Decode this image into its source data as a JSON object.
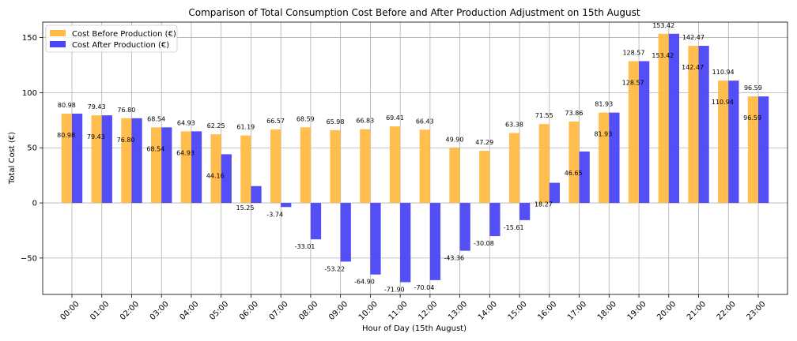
{
  "chart_data": {
    "type": "bar",
    "title": "Comparison of Total Consumption Cost Before and After Production Adjustment on 15th August",
    "xlabel": "Hour of Day (15th August)",
    "ylabel": "Total Cost (€)",
    "categories": [
      "00:00",
      "01:00",
      "02:00",
      "03:00",
      "04:00",
      "05:00",
      "06:00",
      "07:00",
      "08:00",
      "09:00",
      "10:00",
      "11:00",
      "12:00",
      "13:00",
      "14:00",
      "15:00",
      "16:00",
      "17:00",
      "18:00",
      "19:00",
      "20:00",
      "21:00",
      "22:00",
      "23:00"
    ],
    "series": [
      {
        "name": "Cost Before Production (€)",
        "color": "#FFBB44",
        "values": [
          80.98,
          79.43,
          76.8,
          68.54,
          64.93,
          62.25,
          61.19,
          66.57,
          68.59,
          65.98,
          66.83,
          69.41,
          66.43,
          49.9,
          47.29,
          63.38,
          71.55,
          73.86,
          81.93,
          128.57,
          153.42,
          142.47,
          110.94,
          96.59
        ],
        "labels": [
          "80.98",
          "79.43",
          "76.80",
          "68.54",
          "64.93",
          "62.25",
          "61.19",
          "66.57",
          "68.59",
          "65.98",
          "66.83",
          "69.41",
          "66.43",
          "49.90",
          "47.29",
          "63.38",
          "71.55",
          "73.86",
          "81.93",
          "128.57",
          "153.42",
          "142.47",
          "110.94",
          "96.59"
        ]
      },
      {
        "name": "Cost After Production (€)",
        "color": "#4B45F5",
        "values": [
          80.98,
          79.43,
          76.8,
          68.54,
          64.93,
          44.16,
          15.25,
          -3.74,
          -33.01,
          -53.22,
          -64.9,
          -71.9,
          -70.04,
          -43.36,
          -30.08,
          -15.61,
          18.27,
          46.65,
          81.93,
          128.57,
          153.42,
          142.47,
          110.94,
          96.59
        ],
        "labels": [
          "80.98",
          "79.43",
          "76.80",
          "68.54",
          "64.93",
          "44.16",
          "15.25",
          "-3.74",
          "-33.01",
          "-53.22",
          "-64.90",
          "-71.90",
          "-70.04",
          "-43.36",
          "-30.08",
          "-15.61",
          "18.27",
          "46.65",
          "81.93",
          "128.57",
          "153.42",
          "142.47",
          "110.94",
          "96.59"
        ]
      }
    ],
    "yticks": [
      -50,
      0,
      50,
      100,
      150
    ],
    "ytick_labels": [
      "−50",
      "0",
      "50",
      "100",
      "150"
    ],
    "ylim": [
      -83,
      164
    ],
    "grid": true,
    "legend_position": "upper-left"
  }
}
